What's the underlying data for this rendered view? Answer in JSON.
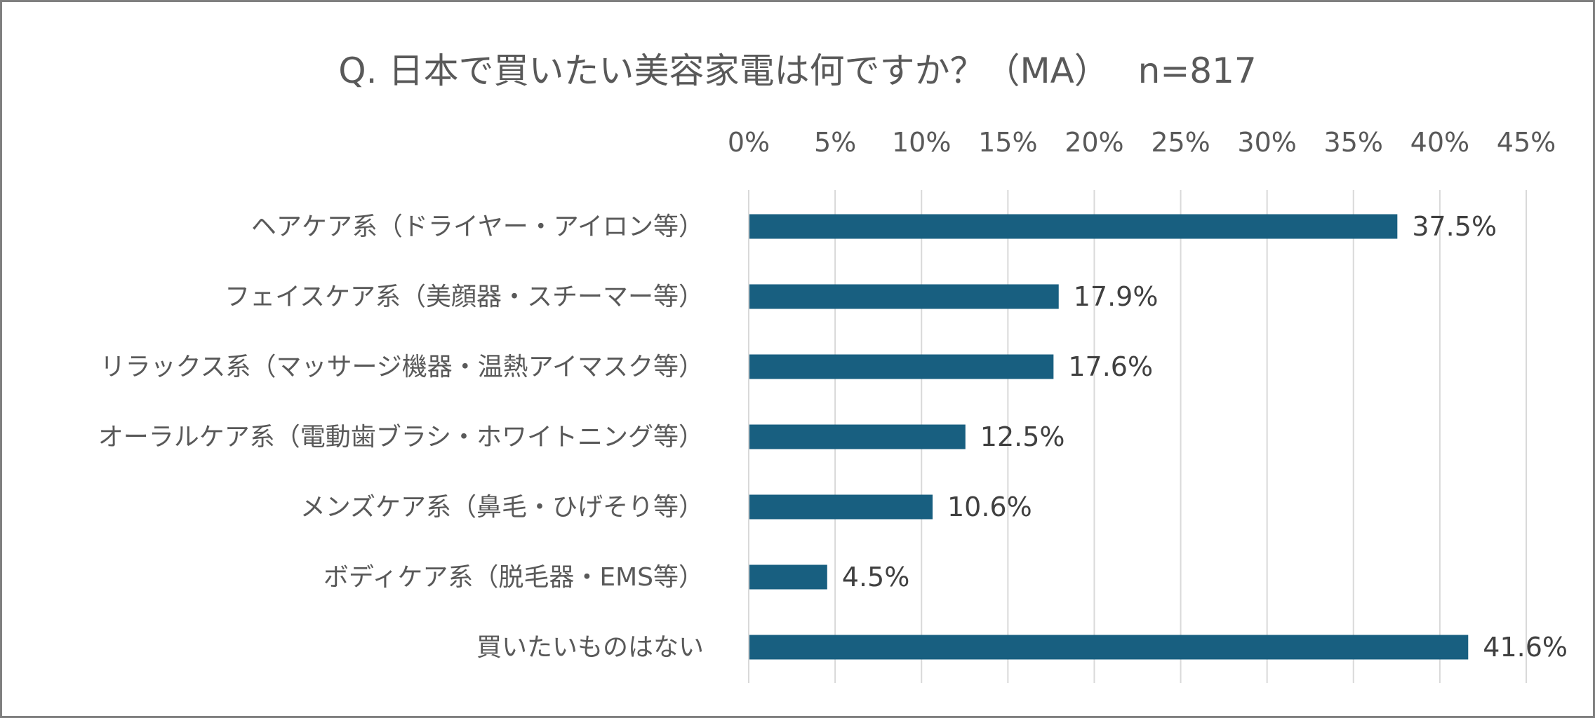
{
  "chart_data": {
    "type": "bar",
    "orientation": "horizontal",
    "title": "Q. 日本で買いたい美容家電は何ですか？（MA）　 n=817",
    "categories": [
      "ヘアケア系（ドライヤー・アイロン等）",
      "フェイスケア系（美顔器・スチーマー等）",
      "リラックス系（マッサージ機器・温熱アイマスク等）",
      "オーラルケア系（電動歯ブラシ・ホワイトニング等）",
      "メンズケア系（鼻毛・ひげそり等）",
      "ボディケア系（脱毛器・EMS等）",
      "買いたいものはない"
    ],
    "values": [
      37.5,
      17.9,
      17.6,
      12.5,
      10.6,
      4.5,
      41.6
    ],
    "data_labels": [
      "37.5%",
      "17.9%",
      "17.6%",
      "12.5%",
      "10.6%",
      "4.5%",
      "41.6%"
    ],
    "xlim": [
      0,
      45
    ],
    "xticks": [
      0,
      5,
      10,
      15,
      20,
      25,
      30,
      35,
      40,
      45
    ],
    "xtick_labels": [
      "0%",
      "5%",
      "10%",
      "15%",
      "20%",
      "25%",
      "30%",
      "35%",
      "40%",
      "45%"
    ],
    "xlabel": "",
    "ylabel": "",
    "grid": true,
    "axis_position": "top",
    "bar_color": "#185f80"
  }
}
